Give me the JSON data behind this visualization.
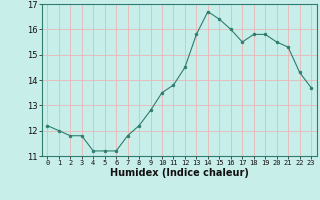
{
  "x": [
    0,
    1,
    2,
    3,
    4,
    5,
    6,
    7,
    8,
    9,
    10,
    11,
    12,
    13,
    14,
    15,
    16,
    17,
    18,
    19,
    20,
    21,
    22,
    23
  ],
  "y": [
    12.2,
    12.0,
    11.8,
    11.8,
    11.2,
    11.2,
    11.2,
    11.8,
    12.2,
    12.8,
    13.5,
    13.8,
    14.5,
    15.8,
    16.7,
    16.4,
    16.0,
    15.5,
    15.8,
    15.8,
    15.5,
    15.3,
    14.3,
    13.7
  ],
  "xlabel": "Humidex (Indice chaleur)",
  "ylim": [
    11,
    17
  ],
  "xlim": [
    -0.5,
    23.5
  ],
  "yticks": [
    11,
    12,
    13,
    14,
    15,
    16,
    17
  ],
  "xticks": [
    0,
    1,
    2,
    3,
    4,
    5,
    6,
    7,
    8,
    9,
    10,
    11,
    12,
    13,
    14,
    15,
    16,
    17,
    18,
    19,
    20,
    21,
    22,
    23
  ],
  "line_color": "#2e7d6e",
  "marker_color": "#2e7d6e",
  "bg_color": "#c8eeea",
  "grid_color": "#e8b8b8",
  "spine_color": "#2e7d6e",
  "tick_label_fontsize": 5.0,
  "ytick_label_fontsize": 6.0,
  "xlabel_fontsize": 7.0
}
